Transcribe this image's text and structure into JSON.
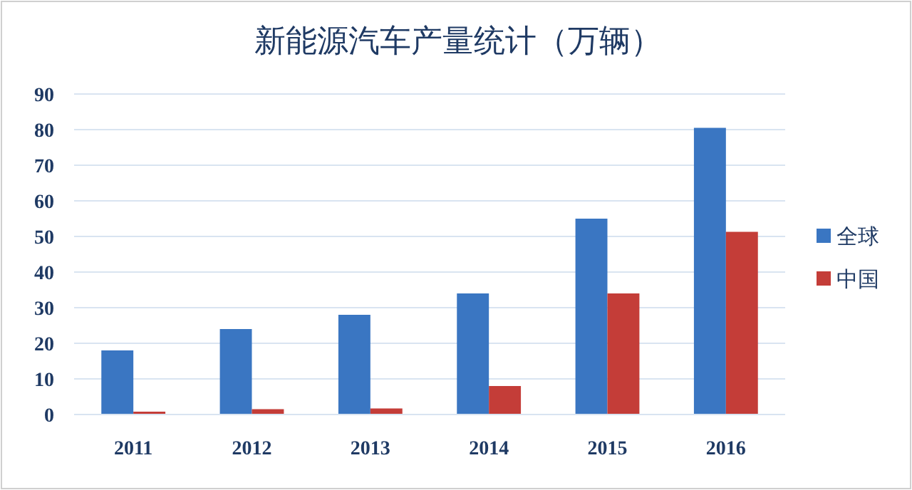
{
  "chart_data": {
    "type": "bar",
    "title": "新能源汽车产量统计（万辆）",
    "categories": [
      "2011",
      "2012",
      "2013",
      "2014",
      "2015",
      "2016"
    ],
    "series": [
      {
        "name": "全球",
        "color": "#3a76c2",
        "values": [
          18,
          24,
          28,
          34,
          55,
          80.5
        ]
      },
      {
        "name": "中国",
        "color": "#c43d38",
        "values": [
          0.8,
          1.5,
          1.7,
          8,
          34,
          51.3
        ]
      }
    ],
    "ylim": [
      0,
      90
    ],
    "yticks": [
      0,
      10,
      20,
      30,
      40,
      50,
      60,
      70,
      80,
      90
    ],
    "grid": "y",
    "legend": "right"
  }
}
